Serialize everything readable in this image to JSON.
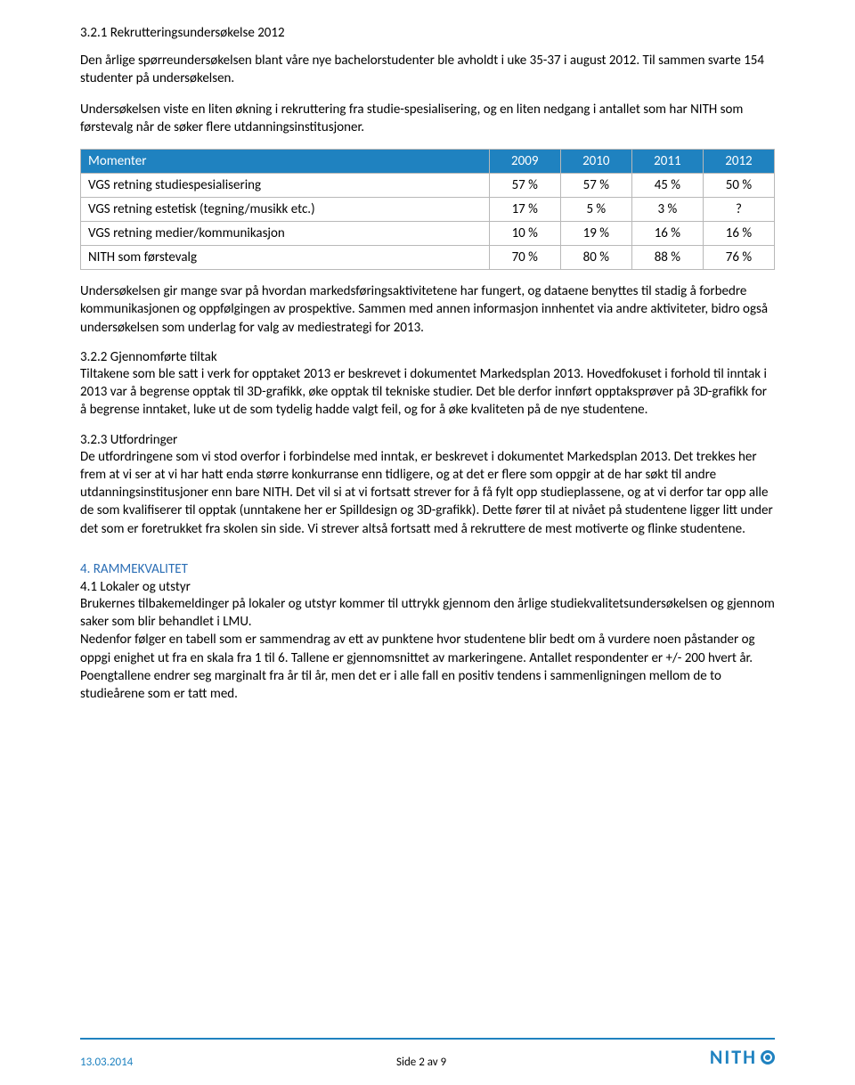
{
  "heading_321": "3.2.1 Rekrutteringsundersøkelse 2012",
  "intro_p1": "Den årlige spørreundersøkelsen blant våre nye bachelorstudenter ble avholdt i uke 35-37 i august 2012. Til sammen svarte 154 studenter på undersøkelsen.",
  "intro_p2": "Undersøkelsen viste en liten økning i rekruttering fra studie-spesialisering, og en liten nedgang i antallet som har NITH som førstevalg når de søker flere utdanningsinstitusjoner.",
  "table": {
    "header_bg": "#1f82c0",
    "header_color": "#ffffff",
    "border_color": "#b8b8b8",
    "columns": [
      "Momenter",
      "2009",
      "2010",
      "2011",
      "2012"
    ],
    "rows": [
      [
        "VGS retning studiespesialisering",
        "57 %",
        "57 %",
        "45 %",
        "50 %"
      ],
      [
        "VGS retning estetisk (tegning/musikk etc.)",
        "17 %",
        "5 %",
        "3 %",
        "?"
      ],
      [
        "VGS retning medier/kommunikasjon",
        "10 %",
        "19 %",
        "16 %",
        "16 %"
      ],
      [
        "NITH som førstevalg",
        "70 %",
        "80 %",
        "88 %",
        "76 %"
      ]
    ]
  },
  "after_table_p": "Undersøkelsen gir mange svar på hvordan markedsføringsaktivitetene har fungert, og dataene benyttes til stadig å forbedre kommunikasjonen og oppfølgingen av prospektive. Sammen med annen informasjon innhentet via andre aktiviteter, bidro også undersøkelsen som underlag for valg av mediestrategi for 2013.",
  "heading_322": "3.2.2 Gjennomførte tiltak",
  "p_322": "Tiltakene som ble satt i verk for opptaket 2013 er beskrevet i dokumentet Markedsplan 2013. Hovedfokuset i forhold til inntak i 2013 var å begrense opptak til 3D-grafikk, øke opptak til tekniske studier. Det ble derfor innført opptaksprøver på 3D-grafikk for å begrense inntaket, luke ut de som tydelig hadde valgt feil, og for å øke kvaliteten på de nye studentene.",
  "heading_323": "3.2.3 Utfordringer",
  "p_323": "De utfordringene som vi stod overfor i forbindelse med inntak, er beskrevet i dokumentet Markedsplan 2013. Det trekkes her frem at vi ser at vi har hatt enda større konkurranse enn tidligere, og at det er flere som oppgir at de har søkt til andre utdanningsinstitusjoner enn bare NITH. Det vil si at vi fortsatt strever for å få fylt opp studieplassene, og at vi derfor tar opp alle de som kvalifiserer til opptak (unntakene her er Spilldesign og 3D-grafikk). Dette fører til at nivået på studentene ligger litt under det som er foretrukket fra skolen sin side. Vi strever altså fortsatt med å rekruttere de mest motiverte og flinke studentene.",
  "heading_4": "4. RAMMEKVALITET",
  "heading_41": "4.1 Lokaler og utstyr",
  "p_41": "Brukernes tilbakemeldinger på lokaler og utstyr kommer til uttrykk gjennom den årlige studiekvalitetsundersøkelsen og gjennom saker som blir behandlet i LMU.\nNedenfor følger en tabell som er sammendrag av ett av punktene hvor studentene blir bedt om å vurdere noen påstander og oppgi enighet ut fra en skala fra 1 til 6. Tallene er gjennomsnittet av markeringene. Antallet respondenter er +/- 200 hvert år. Poengtallene endrer seg marginalt fra år til år, men det er i alle fall en positiv tendens i sammenligningen mellom de to studieårene som er tatt med.",
  "footer": {
    "date": "13.03.2014",
    "page": "Side 2 av 9",
    "logo_text": "NITH",
    "line_color": "#1f82c0",
    "text_color": "#1f82c0"
  }
}
